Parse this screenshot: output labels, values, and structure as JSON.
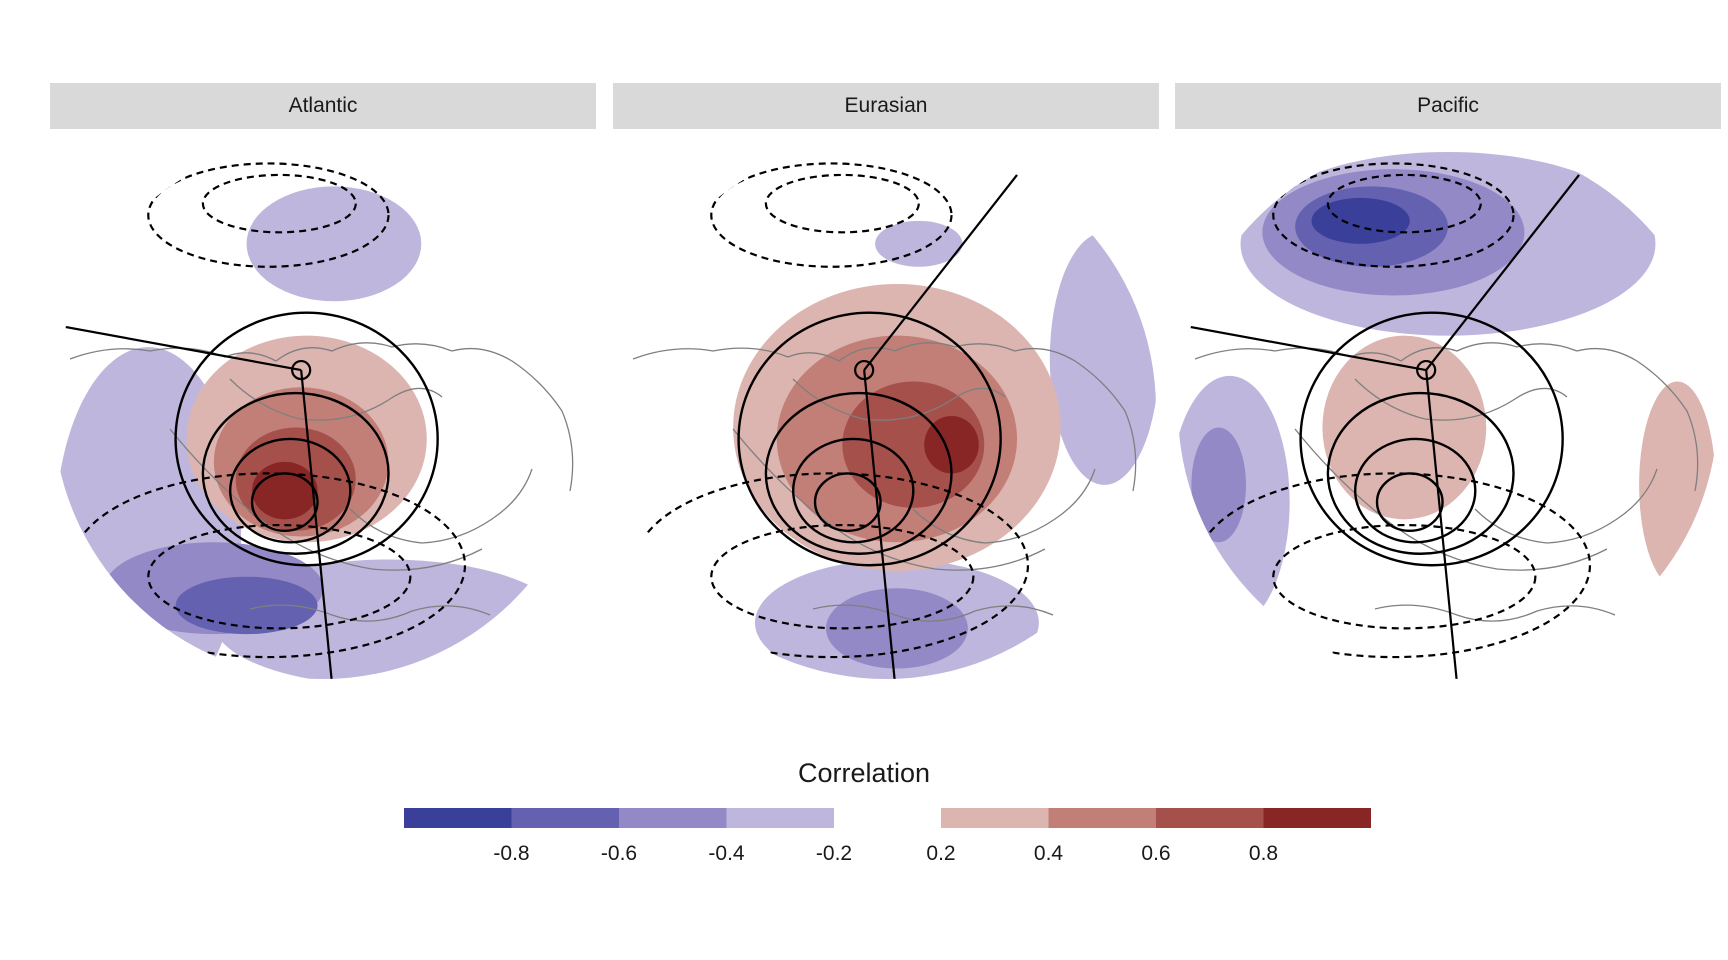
{
  "chart_data": {
    "type": "heatmap",
    "projection": "north polar stereographic",
    "panels": [
      {
        "title": "Atlantic",
        "fill_regions": [
          {
            "category": "-0.2",
            "cx": 0.52,
            "cy": 0.2,
            "rx": 0.16,
            "ry": 0.1
          },
          {
            "category": "-0.2",
            "cx": 0.18,
            "cy": 0.7,
            "rx": 0.17,
            "ry": 0.32
          },
          {
            "category": "-0.2",
            "cx": 0.62,
            "cy": 0.86,
            "rx": 0.32,
            "ry": 0.11
          },
          {
            "category": "-0.4",
            "cx": 0.3,
            "cy": 0.8,
            "rx": 0.2,
            "ry": 0.08
          },
          {
            "category": "-0.6",
            "cx": 0.36,
            "cy": 0.83,
            "rx": 0.13,
            "ry": 0.05
          },
          {
            "category": "0.2",
            "cx": 0.47,
            "cy": 0.54,
            "rx": 0.22,
            "ry": 0.18
          },
          {
            "category": "0.4",
            "cx": 0.46,
            "cy": 0.58,
            "rx": 0.16,
            "ry": 0.13
          },
          {
            "category": "0.6",
            "cx": 0.45,
            "cy": 0.61,
            "rx": 0.11,
            "ry": 0.09
          },
          {
            "category": "0.8",
            "cx": 0.43,
            "cy": 0.63,
            "rx": 0.06,
            "ry": 0.05
          }
        ]
      },
      {
        "title": "Eurasian",
        "fill_regions": [
          {
            "category": "-0.2",
            "cx": 0.56,
            "cy": 0.2,
            "rx": 0.08,
            "ry": 0.04
          },
          {
            "category": "-0.2",
            "cx": 0.9,
            "cy": 0.4,
            "rx": 0.1,
            "ry": 0.22
          },
          {
            "category": "-0.2",
            "cx": 0.52,
            "cy": 0.86,
            "rx": 0.26,
            "ry": 0.11
          },
          {
            "category": "-0.4",
            "cx": 0.52,
            "cy": 0.87,
            "rx": 0.13,
            "ry": 0.07
          },
          {
            "category": "0.2",
            "cx": 0.52,
            "cy": 0.52,
            "rx": 0.3,
            "ry": 0.25
          },
          {
            "category": "0.4",
            "cx": 0.52,
            "cy": 0.54,
            "rx": 0.22,
            "ry": 0.18
          },
          {
            "category": "0.6",
            "cx": 0.55,
            "cy": 0.55,
            "rx": 0.13,
            "ry": 0.11
          },
          {
            "category": "0.8",
            "cx": 0.62,
            "cy": 0.55,
            "rx": 0.05,
            "ry": 0.05
          }
        ]
      },
      {
        "title": "Pacific",
        "fill_regions": [
          {
            "category": "-0.2",
            "cx": 0.5,
            "cy": 0.2,
            "rx": 0.38,
            "ry": 0.16
          },
          {
            "category": "-0.4",
            "cx": 0.4,
            "cy": 0.18,
            "rx": 0.24,
            "ry": 0.11
          },
          {
            "category": "-0.6",
            "cx": 0.36,
            "cy": 0.17,
            "rx": 0.14,
            "ry": 0.07
          },
          {
            "category": "-0.8",
            "cx": 0.34,
            "cy": 0.16,
            "rx": 0.09,
            "ry": 0.04
          },
          {
            "category": "-0.2",
            "cx": 0.1,
            "cy": 0.65,
            "rx": 0.11,
            "ry": 0.22
          },
          {
            "category": "-0.4",
            "cx": 0.08,
            "cy": 0.62,
            "rx": 0.05,
            "ry": 0.1
          },
          {
            "category": "0.2",
            "cx": 0.42,
            "cy": 0.52,
            "rx": 0.15,
            "ry": 0.16
          },
          {
            "category": "0.2",
            "cx": 0.92,
            "cy": 0.62,
            "rx": 0.07,
            "ry": 0.18
          }
        ]
      }
    ],
    "legend": {
      "title": "Correlation",
      "position": "bottom",
      "bins": [
        {
          "label": "-0.8",
          "color": "#3a3f9a"
        },
        {
          "label": "-0.6",
          "color": "#6462b0"
        },
        {
          "label": "-0.4",
          "color": "#9389c6"
        },
        {
          "label": "-0.2",
          "color": "#bfb6dd"
        },
        {
          "label": "0.2",
          "color": "#dcb5b0"
        },
        {
          "label": "0.4",
          "color": "#c27f77"
        },
        {
          "label": "0.6",
          "color": "#a5504b"
        },
        {
          "label": "0.8",
          "color": "#882626"
        }
      ],
      "tick_labels": [
        "-0.8",
        "-0.6",
        "-0.4",
        "-0.2",
        "0.2",
        "0.4",
        "0.6",
        "0.8"
      ]
    },
    "grid": false
  }
}
